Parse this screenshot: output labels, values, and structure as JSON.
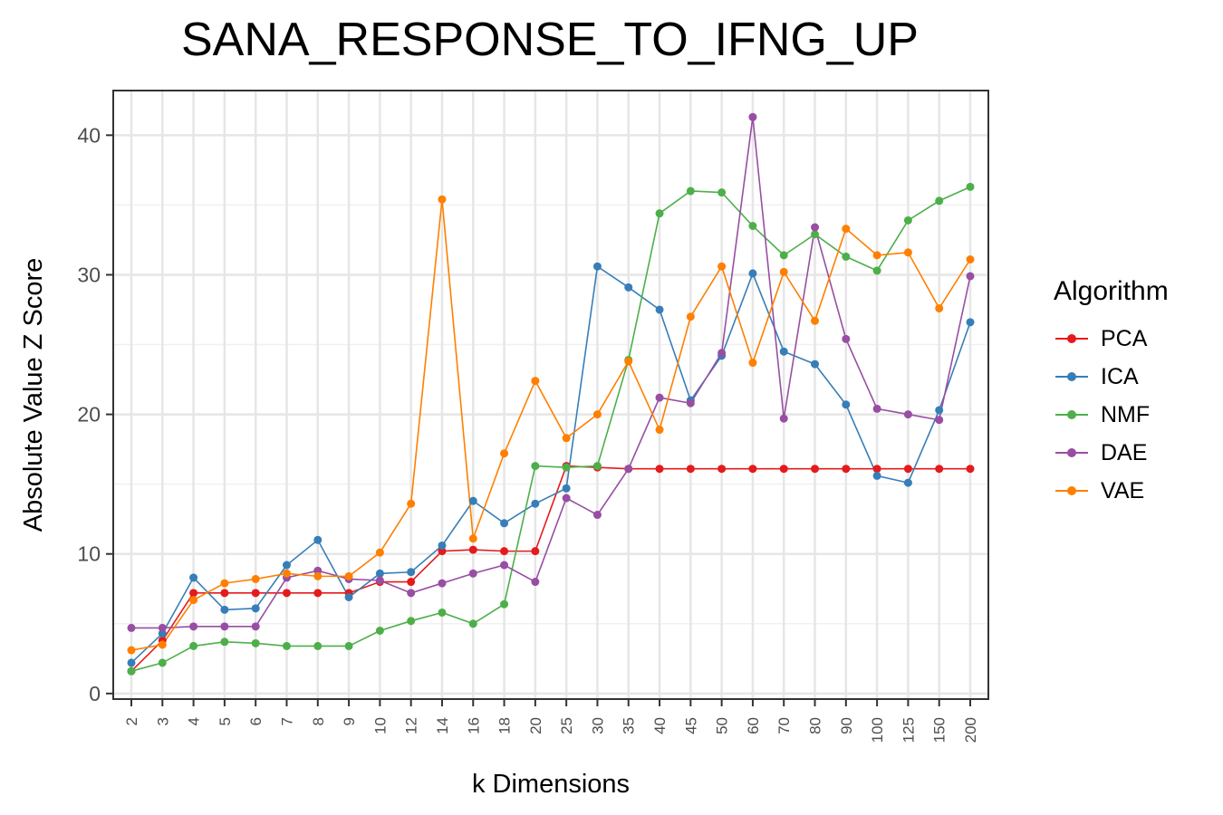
{
  "chart_data": {
    "type": "line",
    "title": "SANA_RESPONSE_TO_IFNG_UP",
    "xlabel": "k Dimensions",
    "ylabel": "Absolute Value Z Score",
    "categories": [
      "2",
      "3",
      "4",
      "5",
      "6",
      "7",
      "8",
      "9",
      "10",
      "12",
      "14",
      "16",
      "18",
      "20",
      "25",
      "30",
      "35",
      "40",
      "45",
      "50",
      "60",
      "70",
      "80",
      "90",
      "100",
      "125",
      "150",
      "200"
    ],
    "yticks": [
      0,
      10,
      20,
      30,
      40
    ],
    "ylim": [
      -0.4,
      43.2
    ],
    "grid": true,
    "legend_title": "Algorithm",
    "legend_position": "right",
    "series": [
      {
        "name": "PCA",
        "color": "#E41A1C",
        "values": [
          1.6,
          3.8,
          7.2,
          7.2,
          7.2,
          7.2,
          7.2,
          7.2,
          8.0,
          8.0,
          10.2,
          10.3,
          10.2,
          10.2,
          16.3,
          16.2,
          16.1,
          16.1,
          16.1,
          16.1,
          16.1,
          16.1,
          16.1,
          16.1,
          16.1,
          16.1,
          16.1,
          16.1
        ]
      },
      {
        "name": "ICA",
        "color": "#377EB8",
        "values": [
          2.2,
          4.3,
          8.3,
          6.0,
          6.1,
          9.2,
          11.0,
          6.9,
          8.6,
          8.7,
          10.6,
          13.8,
          12.2,
          13.6,
          14.7,
          30.6,
          29.1,
          27.5,
          21.0,
          24.2,
          30.1,
          24.5,
          23.6,
          20.7,
          15.6,
          15.1,
          20.3,
          26.6
        ]
      },
      {
        "name": "NMF",
        "color": "#4DAF4A",
        "values": [
          1.6,
          2.2,
          3.4,
          3.7,
          3.6,
          3.4,
          3.4,
          3.4,
          4.5,
          5.2,
          5.8,
          5.0,
          6.4,
          16.3,
          16.2,
          16.3,
          23.9,
          34.4,
          36.0,
          35.9,
          33.5,
          31.4,
          32.9,
          31.3,
          30.3,
          33.9,
          35.3,
          36.3
        ]
      },
      {
        "name": "DAE",
        "color": "#984EA3",
        "values": [
          4.7,
          4.7,
          4.8,
          4.8,
          4.8,
          8.3,
          8.8,
          8.2,
          8.1,
          7.2,
          7.9,
          8.6,
          9.2,
          8.0,
          14.0,
          12.8,
          16.1,
          21.2,
          20.8,
          24.4,
          41.3,
          19.7,
          33.4,
          25.4,
          20.4,
          20.0,
          19.6,
          29.9
        ]
      },
      {
        "name": "VAE",
        "color": "#FF7F00",
        "values": [
          3.1,
          3.5,
          6.7,
          7.9,
          8.2,
          8.6,
          8.4,
          8.4,
          10.1,
          13.6,
          35.4,
          11.1,
          17.2,
          22.4,
          18.3,
          20.0,
          23.8,
          18.9,
          27.0,
          30.6,
          23.7,
          30.2,
          26.7,
          33.3,
          31.4,
          31.6,
          27.6,
          31.1
        ]
      }
    ]
  }
}
